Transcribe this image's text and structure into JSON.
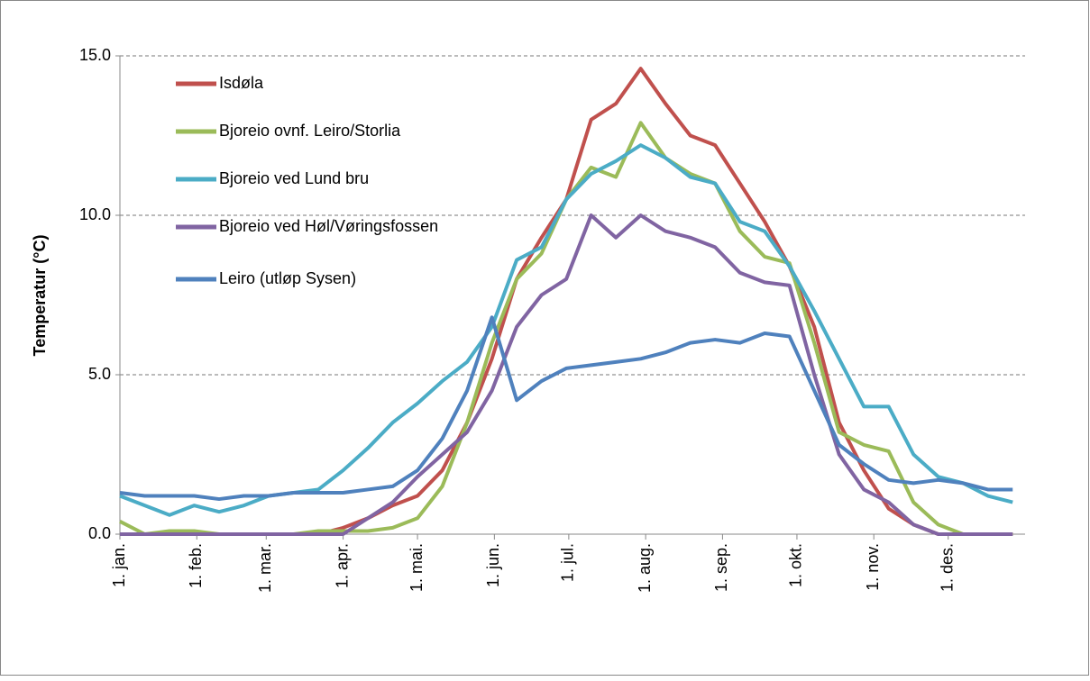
{
  "chart_data": {
    "type": "line",
    "y_label": "Temperatur (°C)",
    "x": [
      0,
      10,
      20,
      30,
      40,
      50,
      60,
      70,
      80,
      90,
      100,
      110,
      120,
      130,
      140,
      150,
      160,
      170,
      180,
      190,
      200,
      210,
      220,
      230,
      240,
      250,
      260,
      270,
      280,
      290,
      300,
      310,
      320,
      330,
      340,
      350,
      360
    ],
    "xlim": [
      0,
      365
    ],
    "xticks": [
      {
        "value": 0,
        "label": "1. jan."
      },
      {
        "value": 31,
        "label": "1. feb."
      },
      {
        "value": 59,
        "label": "1. mar."
      },
      {
        "value": 90,
        "label": "1. apr."
      },
      {
        "value": 120,
        "label": "1. mai."
      },
      {
        "value": 151,
        "label": "1. jun."
      },
      {
        "value": 181,
        "label": "1. jul."
      },
      {
        "value": 212,
        "label": "1. aug."
      },
      {
        "value": 243,
        "label": "1. sep."
      },
      {
        "value": 273,
        "label": "1. okt."
      },
      {
        "value": 304,
        "label": "1. nov."
      },
      {
        "value": 334,
        "label": "1. des."
      }
    ],
    "ylim": [
      0,
      15
    ],
    "yticks": [
      {
        "value": 0,
        "label": "0.0"
      },
      {
        "value": 5,
        "label": "5.0"
      },
      {
        "value": 10,
        "label": "10.0"
      },
      {
        "value": 15,
        "label": "15.0"
      }
    ],
    "grid": true,
    "legend": "upper left",
    "series": [
      {
        "name": "Isdøla",
        "color": "#c0504d",
        "values": [
          0,
          0,
          0,
          0,
          0,
          0,
          0,
          0,
          0,
          0.2,
          0.5,
          0.9,
          1.2,
          2.0,
          3.5,
          5.5,
          8.0,
          9.3,
          10.5,
          13.0,
          13.5,
          14.6,
          13.5,
          12.5,
          12.2,
          11.0,
          9.8,
          8.4,
          6.5,
          3.5,
          2.0,
          0.8,
          0.3,
          0,
          0,
          0,
          0
        ]
      },
      {
        "name": "Bjoreio ovnf. Leiro/Storlia",
        "color": "#9bbb59",
        "values": [
          0.4,
          0,
          0.1,
          0.1,
          0,
          0,
          0,
          0,
          0.1,
          0.1,
          0.1,
          0.2,
          0.5,
          1.5,
          3.5,
          6.0,
          8.0,
          8.8,
          10.5,
          11.5,
          11.2,
          12.9,
          11.8,
          11.3,
          11.0,
          9.5,
          8.7,
          8.5,
          6.0,
          3.2,
          2.8,
          2.6,
          1.0,
          0.3,
          0,
          0,
          0
        ]
      },
      {
        "name": "Bjoreio ved Lund bru",
        "color": "#4bacc6",
        "values": [
          1.2,
          0.9,
          0.6,
          0.9,
          0.7,
          0.9,
          1.2,
          1.3,
          1.4,
          2.0,
          2.7,
          3.5,
          4.1,
          4.8,
          5.4,
          6.5,
          8.6,
          9.0,
          10.5,
          11.3,
          11.7,
          12.2,
          11.8,
          11.2,
          11.0,
          9.8,
          9.5,
          8.4,
          7.0,
          5.5,
          4.0,
          4.0,
          2.5,
          1.8,
          1.6,
          1.2,
          1.0
        ]
      },
      {
        "name": "Bjoreio ved Høl/Vøringsfossen",
        "color": "#8064a2",
        "values": [
          0,
          0,
          0,
          0,
          0,
          0,
          0,
          0,
          0,
          0,
          0.5,
          1.0,
          1.8,
          2.5,
          3.2,
          4.5,
          6.5,
          7.5,
          8.0,
          10.0,
          9.3,
          10.0,
          9.5,
          9.3,
          9.0,
          8.2,
          7.9,
          7.8,
          5.0,
          2.5,
          1.4,
          1.0,
          0.3,
          0,
          0,
          0,
          0
        ]
      },
      {
        "name": "Leiro (utløp Sysen)",
        "color": "#4f81bd",
        "values": [
          1.3,
          1.2,
          1.2,
          1.2,
          1.1,
          1.2,
          1.2,
          1.3,
          1.3,
          1.3,
          1.4,
          1.5,
          2.0,
          3.0,
          4.5,
          6.8,
          4.2,
          4.8,
          5.2,
          5.3,
          5.4,
          5.5,
          5.7,
          6.0,
          6.1,
          6.0,
          6.3,
          6.2,
          4.5,
          2.8,
          2.2,
          1.7,
          1.6,
          1.7,
          1.6,
          1.4,
          1.4
        ]
      }
    ]
  }
}
